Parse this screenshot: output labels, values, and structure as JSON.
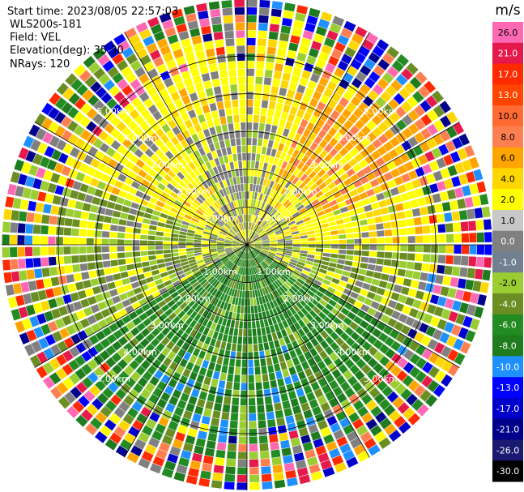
{
  "info": {
    "start_time": "Start time: 2023/08/05 22:57:03",
    "instrument": "WLS200s-181",
    "field": "Field: VEL",
    "elevation": "Elevation(deg): 35.30",
    "nrays": "NRays: 120"
  },
  "colorbar": {
    "unit": "m/s",
    "labels": [
      "26.0",
      "21.0",
      "17.0",
      "13.0",
      "10.0",
      "8.0",
      "6.0",
      "4.0",
      "2.0",
      "1.0",
      "0.0",
      "-1.0",
      "-2.0",
      "-4.0",
      "-6.0",
      "-8.0",
      "-10.0",
      "-13.0",
      "-17.0",
      "-21.0",
      "-26.0",
      "-30.0"
    ],
    "colors": [
      "#ff69b4",
      "#e6194b",
      "#ff2a00",
      "#ff4500",
      "#ff6a33",
      "#ff7f50",
      "#ffa500",
      "#ffd700",
      "#ffff00",
      "#c8c8c8",
      "#808080",
      "#708090",
      "#9acd32",
      "#6b8e23",
      "#228b22",
      "#1e7b1e",
      "#1e90ff",
      "#0000ff",
      "#0000cd",
      "#00008b",
      "#191970",
      "#000000"
    ]
  },
  "chart_data": {
    "type": "ppi",
    "field": "VEL",
    "unit": "m/s",
    "nrays": 120,
    "elevation_deg": 35.3,
    "range_rings_km": [
      1.0,
      2.0,
      3.0,
      4.0,
      5.0
    ],
    "ring_labels": [
      "1.00km",
      "2.00km",
      "3.00km",
      "4.00km",
      "5.00km"
    ],
    "max_range_km": 6.5,
    "gate_count": 32,
    "spokes_deg": [
      0,
      30,
      60,
      90,
      120,
      150,
      180,
      210,
      240,
      270,
      300,
      330
    ],
    "vmin": -30.0,
    "vmax": 26.0
  }
}
